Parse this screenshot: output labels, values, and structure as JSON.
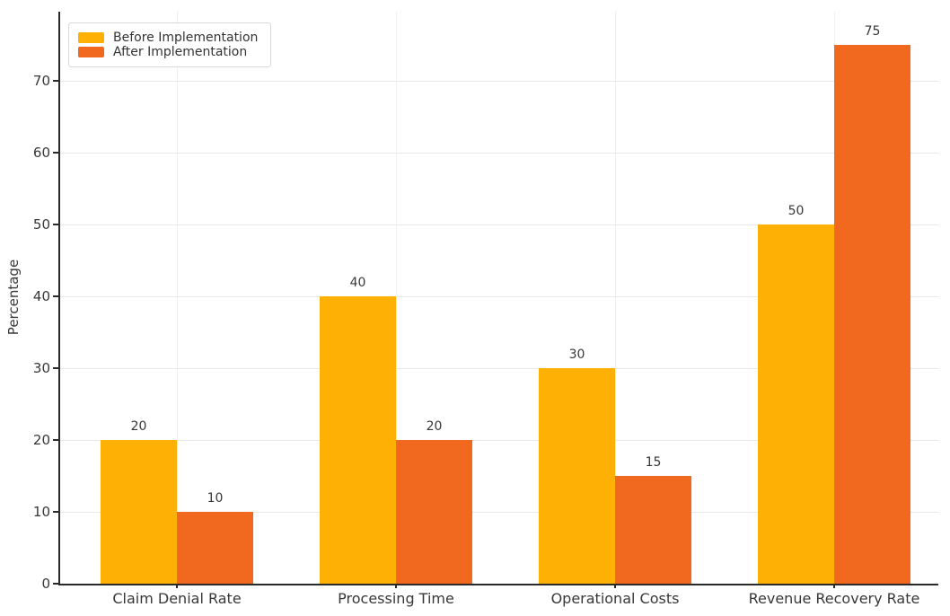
{
  "chart_data": {
    "type": "bar",
    "title": "",
    "categories": [
      "Claim Denial Rate",
      "Processing Time",
      "Operational Costs",
      "Revenue Recovery Rate"
    ],
    "series": [
      {
        "name": "Before Implementation",
        "color": "#FFB005",
        "values": [
          20,
          40,
          30,
          50
        ]
      },
      {
        "name": "After Implementation",
        "color": "#F0691E",
        "values": [
          10,
          20,
          15,
          75
        ]
      }
    ],
    "xlabel": "",
    "ylabel": "Percentage",
    "yticks": [
      0,
      10,
      20,
      30,
      40,
      50,
      60,
      70
    ],
    "ylim": [
      0,
      79.6
    ],
    "grid": "horizontal lines at every 10, faint vertical line at each category center",
    "legend_position": "upper-left",
    "value_labels_shown": true
  },
  "colors": {
    "background": "#ffffff",
    "grid_horizontal": "#e7e7e7",
    "grid_vertical": "#efefef",
    "axis": "#2a2a2a",
    "text": "#383838"
  }
}
